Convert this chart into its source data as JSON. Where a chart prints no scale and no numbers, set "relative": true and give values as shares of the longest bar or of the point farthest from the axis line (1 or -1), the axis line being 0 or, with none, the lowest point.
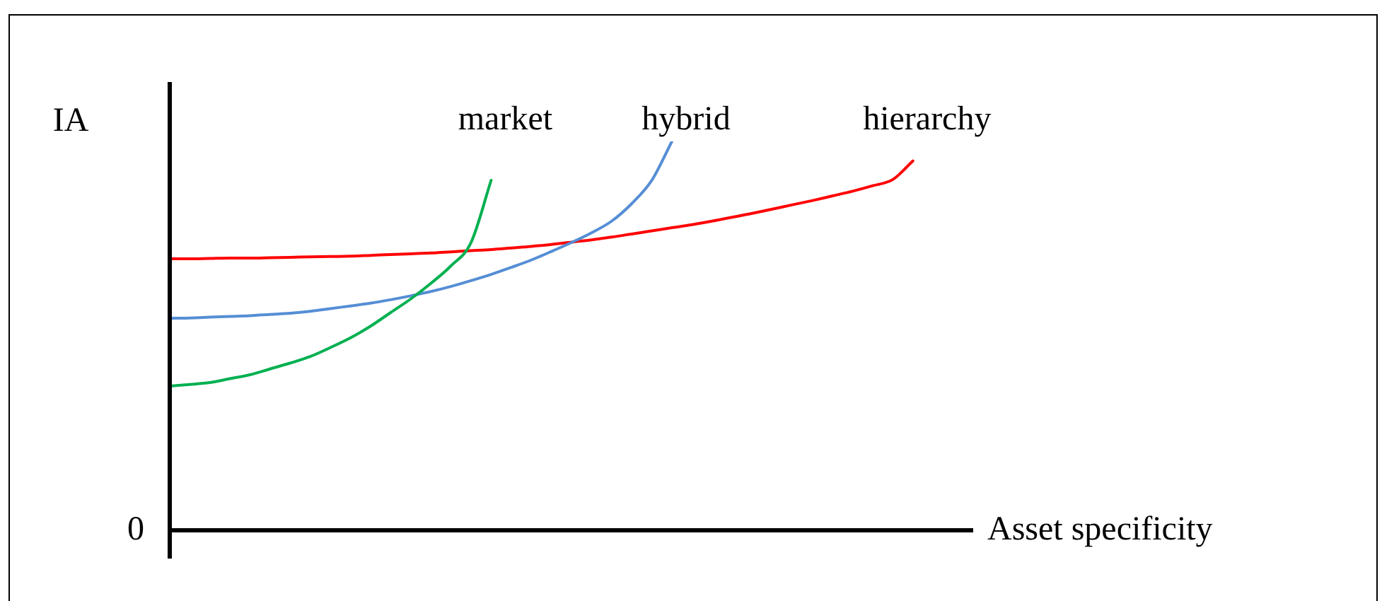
{
  "chart_data": {
    "type": "line",
    "relative": true,
    "ylabel": "IA",
    "xlabel": "Asset specificity",
    "legend": false,
    "marker": "none",
    "line_style": "solid",
    "annotations": [
      "0"
    ],
    "categories": [
      null,
      null,
      null,
      null,
      null,
      null,
      null,
      null,
      null,
      null,
      null,
      null,
      null,
      null,
      null,
      null,
      null,
      null,
      null,
      null,
      null,
      null,
      null,
      null,
      null,
      null,
      null,
      null,
      null,
      null,
      null,
      null,
      null,
      null,
      null,
      null,
      null,
      null,
      null,
      null,
      null
    ],
    "series": [
      {
        "name": "market",
        "color": "#00b050",
        "values": [
          0.371,
          0.375,
          0.38,
          0.39,
          0.4,
          0.415,
          0.43,
          0.447,
          0.47,
          0.495,
          0.525,
          0.56,
          0.595,
          0.635,
          0.68,
          0.74,
          0.9,
          null,
          null,
          null,
          null,
          null,
          null,
          null,
          null,
          null,
          null,
          null,
          null,
          null,
          null,
          null,
          null,
          null,
          null,
          null,
          null,
          null,
          null,
          null,
          null
        ]
      },
      {
        "name": "hybrid",
        "color": "#558ed5",
        "values": [
          0.545,
          0.546,
          0.548,
          0.55,
          0.552,
          0.555,
          0.558,
          0.563,
          0.57,
          0.577,
          0.584,
          0.593,
          0.603,
          0.614,
          0.627,
          0.642,
          0.658,
          0.676,
          0.695,
          0.717,
          0.74,
          0.765,
          0.795,
          0.84,
          0.9,
          1.0,
          null,
          null,
          null,
          null,
          null,
          null,
          null,
          null,
          null,
          null,
          null,
          null,
          null,
          null,
          null
        ]
      },
      {
        "name": "hierarchy",
        "color": "#ff0000",
        "values": [
          0.698,
          0.698,
          0.699,
          0.7,
          0.7,
          0.701,
          0.702,
          0.703,
          0.704,
          0.705,
          0.707,
          0.709,
          0.711,
          0.713,
          0.716,
          0.719,
          0.722,
          0.726,
          0.73,
          0.735,
          0.741,
          0.747,
          0.754,
          0.762,
          0.77,
          0.778,
          0.786,
          0.795,
          0.805,
          0.815,
          0.826,
          0.837,
          0.848,
          0.86,
          0.872,
          0.886,
          0.902,
          0.95,
          null,
          null,
          null
        ]
      }
    ]
  }
}
